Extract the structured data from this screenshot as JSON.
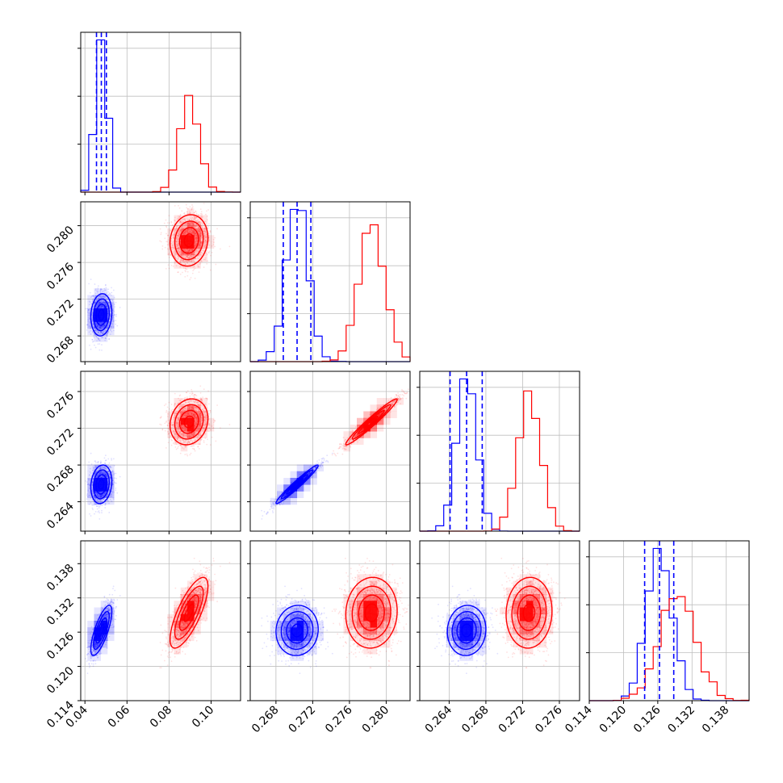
{
  "chart_data": {
    "type": "corner",
    "variables": [
      {
        "range": [
          0.038,
          0.114
        ],
        "ticks": [
          0.04,
          0.06,
          0.08,
          0.1
        ],
        "labels": [
          "0.04",
          "0.06",
          "0.08",
          "0.10"
        ]
      },
      {
        "range": [
          0.2652,
          0.2826
        ],
        "ticks": [
          0.268,
          0.272,
          0.276,
          0.28
        ],
        "labels": [
          "0.268",
          "0.272",
          "0.276",
          "0.280"
        ]
      },
      {
        "range": [
          0.2608,
          0.2782
        ],
        "ticks": [
          0.264,
          0.268,
          0.272,
          0.276
        ],
        "labels": [
          "0.264",
          "0.268",
          "0.272",
          "0.276"
        ]
      },
      {
        "range": [
          0.114,
          0.142
        ],
        "ticks": [
          0.114,
          0.12,
          0.126,
          0.132,
          0.138
        ],
        "labels": [
          "0.114",
          "0.120",
          "0.126",
          "0.132",
          "0.138"
        ]
      }
    ],
    "series": [
      {
        "color": "#0000ff",
        "mean": [
          0.0478,
          0.2703,
          0.2659,
          0.1263
        ],
        "std": [
          0.0025,
          0.00115,
          0.00105,
          0.0022
        ],
        "corr": [
          [
            1,
            0.1,
            0.15,
            0.75
          ],
          [
            0.1,
            1,
            0.97,
            0.05
          ],
          [
            0.15,
            0.97,
            1,
            0.05
          ],
          [
            0.75,
            0.05,
            0.05,
            1
          ]
        ],
        "quantile_lines": [
          [
            0.0455,
            0.0478,
            0.0502
          ],
          [
            0.2688,
            0.2703,
            0.2718
          ],
          [
            0.2641,
            0.2659,
            0.2676
          ],
          [
            0.1237,
            0.1263,
            0.1288
          ]
        ]
      },
      {
        "color": "#ff0000",
        "mean": [
          0.0895,
          0.2784,
          0.2727,
          0.1294
        ],
        "std": [
          0.0045,
          0.0014,
          0.00125,
          0.0031
        ],
        "corr": [
          [
            1,
            0.1,
            0.15,
            0.75
          ],
          [
            0.1,
            1,
            0.97,
            0.05
          ],
          [
            0.15,
            0.97,
            1,
            0.05
          ],
          [
            0.75,
            0.05,
            0.05,
            1
          ]
        ],
        "quantile_lines": []
      }
    ],
    "title": "",
    "xlabel": "",
    "ylabel": ""
  }
}
